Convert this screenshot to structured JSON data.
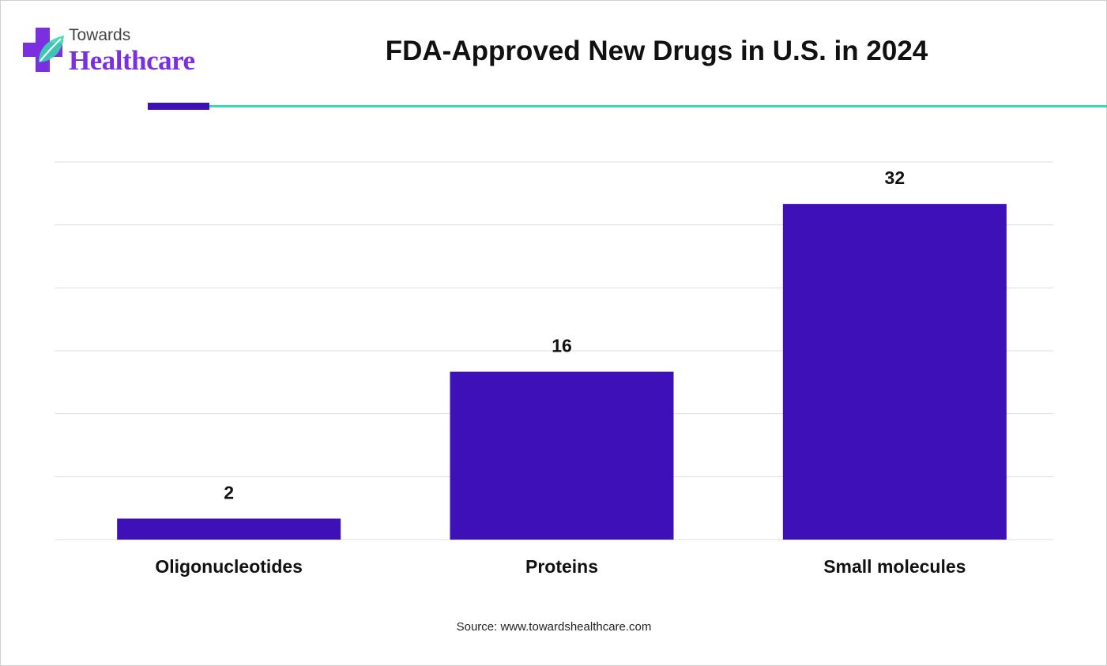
{
  "brand": {
    "line1": "Towards",
    "line2": "Healthcare",
    "colors": {
      "purple": "#7b2fe0",
      "teal": "#3ad6b0"
    }
  },
  "source_text": "Source: www.towardshealthcare.com",
  "colors": {
    "bar": "#3e10b8",
    "grid": "#dddddd",
    "rule_accent": "#3ad6b0"
  },
  "chart_data": {
    "type": "bar",
    "title": "FDA-Approved New Drugs in U.S. in 2024",
    "categories": [
      "Oligonucleotides",
      "Proteins",
      "Small molecules"
    ],
    "values": [
      2,
      16,
      32
    ],
    "ylim": [
      0,
      36
    ],
    "y_gridline_step": 6,
    "xlabel": "",
    "ylabel": "",
    "grid": true,
    "legend": "none",
    "data_labels": [
      "2",
      "16",
      "32"
    ]
  }
}
